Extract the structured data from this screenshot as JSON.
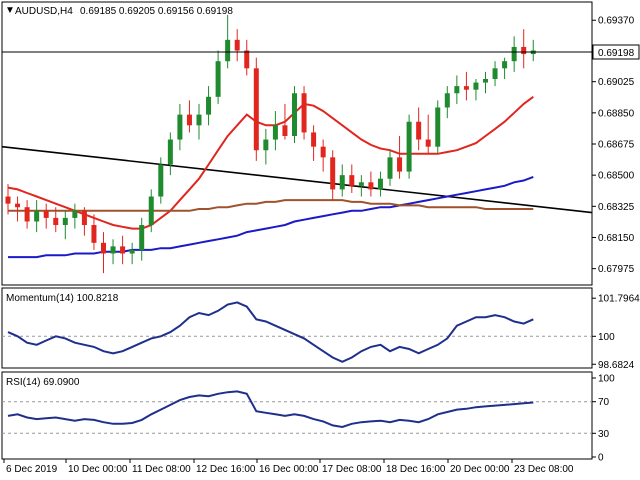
{
  "header": {
    "symbol": "AUDUSD,H4",
    "ohlc": "0.69185 0.69205 0.69156 0.69198"
  },
  "price_badge": "0.69198",
  "colors": {
    "bull_candle": "#1f8a2e",
    "bear_candle": "#e0261e",
    "sma20": "#e0261e",
    "sma100": "#1a1ac8",
    "sma200": "#a0522d",
    "trendline": "#000000",
    "indicator_line": "#1e2f8c",
    "border": "#000000"
  },
  "chart_data": [
    {
      "type": "candlestick",
      "title": "AUDUSD,H4",
      "ylim": [
        0.679,
        0.6945
      ],
      "y_ticks": [
        "0.69370",
        "0.69198",
        "0.69025",
        "0.68850",
        "0.68675",
        "0.68500",
        "0.68325",
        "0.68150",
        "0.67975"
      ],
      "x_ticks": [
        "6 Dec 2019",
        "10 Dec 00:00",
        "11 Dec 08:00",
        "12 Dec 16:00",
        "16 Dec 00:00",
        "17 Dec 08:00",
        "18 Dec 16:00",
        "20 Dec 00:00",
        "23 Dec 08:00"
      ],
      "candles": [
        [
          0.6838,
          0.6845,
          0.6828,
          0.6834
        ],
        [
          0.6834,
          0.6838,
          0.6824,
          0.6832
        ],
        [
          0.6832,
          0.6836,
          0.682,
          0.6824
        ],
        [
          0.6824,
          0.6836,
          0.6818,
          0.683
        ],
        [
          0.683,
          0.6834,
          0.682,
          0.6826
        ],
        [
          0.6826,
          0.6832,
          0.6818,
          0.6822
        ],
        [
          0.6822,
          0.683,
          0.6814,
          0.6826
        ],
        [
          0.6826,
          0.6834,
          0.682,
          0.683
        ],
        [
          0.683,
          0.6832,
          0.6816,
          0.6822
        ],
        [
          0.6822,
          0.6828,
          0.6808,
          0.6812
        ],
        [
          0.6812,
          0.6818,
          0.6795,
          0.6806
        ],
        [
          0.6806,
          0.6814,
          0.68,
          0.681
        ],
        [
          0.681,
          0.6816,
          0.68,
          0.6806
        ],
        [
          0.6806,
          0.6812,
          0.68,
          0.6808
        ],
        [
          0.6808,
          0.6826,
          0.6802,
          0.6822
        ],
        [
          0.6822,
          0.6842,
          0.6818,
          0.6838
        ],
        [
          0.6838,
          0.686,
          0.6834,
          0.6856
        ],
        [
          0.6856,
          0.6874,
          0.685,
          0.687
        ],
        [
          0.687,
          0.689,
          0.6864,
          0.6884
        ],
        [
          0.6884,
          0.6892,
          0.6874,
          0.6878
        ],
        [
          0.6878,
          0.689,
          0.687,
          0.6884
        ],
        [
          0.6884,
          0.69,
          0.6878,
          0.6894
        ],
        [
          0.6894,
          0.692,
          0.689,
          0.6914
        ],
        [
          0.6914,
          0.694,
          0.691,
          0.6926
        ],
        [
          0.6926,
          0.6932,
          0.6914,
          0.692
        ],
        [
          0.692,
          0.6926,
          0.6906,
          0.691
        ],
        [
          0.691,
          0.6916,
          0.6858,
          0.6864
        ],
        [
          0.6864,
          0.6876,
          0.6856,
          0.687
        ],
        [
          0.687,
          0.6886,
          0.6864,
          0.6878
        ],
        [
          0.6878,
          0.689,
          0.687,
          0.6872
        ],
        [
          0.6872,
          0.69,
          0.6868,
          0.6896
        ],
        [
          0.6896,
          0.69,
          0.687,
          0.6874
        ],
        [
          0.6874,
          0.6878,
          0.6858,
          0.6866
        ],
        [
          0.6866,
          0.687,
          0.6852,
          0.686
        ],
        [
          0.686,
          0.6864,
          0.6836,
          0.6842
        ],
        [
          0.6842,
          0.6856,
          0.6838,
          0.685
        ],
        [
          0.685,
          0.6856,
          0.684,
          0.6844
        ],
        [
          0.6844,
          0.685,
          0.6838,
          0.6846
        ],
        [
          0.6846,
          0.6852,
          0.6838,
          0.6842
        ],
        [
          0.6842,
          0.6852,
          0.6838,
          0.6848
        ],
        [
          0.6848,
          0.6864,
          0.6844,
          0.686
        ],
        [
          0.686,
          0.6872,
          0.6848,
          0.6852
        ],
        [
          0.6852,
          0.6884,
          0.6848,
          0.688
        ],
        [
          0.688,
          0.6888,
          0.6864,
          0.687
        ],
        [
          0.687,
          0.6884,
          0.6862,
          0.6866
        ],
        [
          0.6866,
          0.6892,
          0.6862,
          0.6888
        ],
        [
          0.6888,
          0.69,
          0.6882,
          0.6896
        ],
        [
          0.6896,
          0.6906,
          0.689,
          0.69
        ],
        [
          0.69,
          0.6908,
          0.6892,
          0.6898
        ],
        [
          0.6898,
          0.6904,
          0.6892,
          0.6902
        ],
        [
          0.6902,
          0.6908,
          0.6896,
          0.6904
        ],
        [
          0.6904,
          0.6914,
          0.69,
          0.691
        ],
        [
          0.691,
          0.6916,
          0.6904,
          0.6914
        ],
        [
          0.6914,
          0.6928,
          0.6908,
          0.6922
        ],
        [
          0.6922,
          0.6932,
          0.691,
          0.6918
        ],
        [
          0.6918,
          0.6926,
          0.6914,
          0.692
        ]
      ],
      "series": [
        {
          "name": "SMA 20",
          "values": [
            0.6843,
            0.6842,
            0.684,
            0.6838,
            0.6836,
            0.6834,
            0.6832,
            0.683,
            0.6828,
            0.6826,
            0.6824,
            0.6822,
            0.6821,
            0.682,
            0.682,
            0.6822,
            0.6826,
            0.683,
            0.6836,
            0.6842,
            0.6848,
            0.6856,
            0.6864,
            0.6872,
            0.6878,
            0.6884,
            0.688,
            0.6878,
            0.6878,
            0.688,
            0.6885,
            0.689,
            0.6889,
            0.6886,
            0.6882,
            0.6878,
            0.6874,
            0.687,
            0.6867,
            0.6865,
            0.6864,
            0.6862,
            0.6862,
            0.6862,
            0.6862,
            0.6862,
            0.6863,
            0.6864,
            0.6866,
            0.6868,
            0.6872,
            0.6876,
            0.688,
            0.6885,
            0.689,
            0.6894
          ]
        },
        {
          "name": "SMA 100",
          "values": [
            0.6804,
            0.6804,
            0.6804,
            0.6804,
            0.6805,
            0.6805,
            0.6805,
            0.6806,
            0.6806,
            0.6806,
            0.6807,
            0.6807,
            0.6807,
            0.6808,
            0.6808,
            0.6808,
            0.6809,
            0.6809,
            0.681,
            0.6811,
            0.6812,
            0.6813,
            0.6814,
            0.6815,
            0.6816,
            0.6818,
            0.6819,
            0.682,
            0.6821,
            0.6822,
            0.6824,
            0.6825,
            0.6826,
            0.6827,
            0.6828,
            0.6829,
            0.683,
            0.683,
            0.6831,
            0.6832,
            0.6832,
            0.6833,
            0.6834,
            0.6835,
            0.6836,
            0.6837,
            0.6838,
            0.6839,
            0.684,
            0.6841,
            0.6842,
            0.6843,
            0.6844,
            0.6846,
            0.6847,
            0.6849
          ]
        },
        {
          "name": "SMA 200",
          "values": [
            0.683,
            0.683,
            0.683,
            0.683,
            0.683,
            0.683,
            0.683,
            0.683,
            0.683,
            0.683,
            0.683,
            0.683,
            0.683,
            0.683,
            0.683,
            0.683,
            0.683,
            0.683,
            0.683,
            0.683,
            0.6831,
            0.6831,
            0.6832,
            0.6832,
            0.6833,
            0.6834,
            0.6834,
            0.6835,
            0.6835,
            0.6836,
            0.6836,
            0.6836,
            0.6836,
            0.6836,
            0.6836,
            0.6836,
            0.6835,
            0.6835,
            0.6834,
            0.6834,
            0.6834,
            0.6833,
            0.6833,
            0.6833,
            0.6832,
            0.6832,
            0.6832,
            0.6832,
            0.6832,
            0.6832,
            0.6831,
            0.6831,
            0.6831,
            0.6831,
            0.6831,
            0.6831
          ]
        }
      ],
      "trendline": {
        "start": 0.6866,
        "end": 0.6829
      }
    },
    {
      "type": "line",
      "title": "Momentum(14) 100.8218",
      "ylim": [
        98.6,
        101.9
      ],
      "y_ticks": [
        "101.7964",
        "100",
        "98.6824"
      ],
      "level": 100,
      "values": [
        100.2,
        100.0,
        99.7,
        99.6,
        99.8,
        100.0,
        99.9,
        99.7,
        99.6,
        99.5,
        99.3,
        99.2,
        99.3,
        99.5,
        99.7,
        99.9,
        100.0,
        100.2,
        100.5,
        100.9,
        101.1,
        101.0,
        101.2,
        101.5,
        101.6,
        101.4,
        100.8,
        100.7,
        100.5,
        100.3,
        100.1,
        99.9,
        99.6,
        99.3,
        99.0,
        98.8,
        99.0,
        99.3,
        99.5,
        99.6,
        99.3,
        99.5,
        99.4,
        99.2,
        99.4,
        99.6,
        99.9,
        100.5,
        100.7,
        100.9,
        100.9,
        101.0,
        100.9,
        100.7,
        100.6,
        100.8
      ]
    },
    {
      "type": "line",
      "title": "RSI(14) 69.0900",
      "ylim": [
        0,
        100
      ],
      "y_ticks": [
        "100",
        "70",
        "30",
        "0"
      ],
      "levels": [
        70,
        30
      ],
      "values": [
        52,
        54,
        50,
        48,
        49,
        50,
        48,
        46,
        48,
        47,
        44,
        42,
        42,
        43,
        47,
        54,
        60,
        66,
        72,
        76,
        78,
        77,
        80,
        82,
        83,
        80,
        58,
        56,
        54,
        52,
        54,
        52,
        48,
        45,
        40,
        38,
        42,
        44,
        45,
        46,
        44,
        47,
        46,
        44,
        48,
        54,
        57,
        60,
        61,
        63,
        64,
        65,
        66,
        67,
        68,
        69
      ]
    }
  ]
}
